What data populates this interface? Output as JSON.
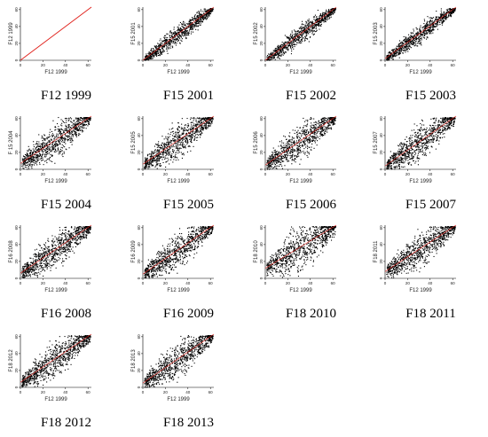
{
  "chart_data": [
    {
      "type": "scatter",
      "title": "F12 1999",
      "xlabel": "F12 1999",
      "ylabel": "F12 1999",
      "xticks": [
        "0",
        "20",
        "40",
        "60"
      ],
      "yticks": [
        "0",
        "20",
        "40",
        "60"
      ],
      "xlim": [
        0,
        63
      ],
      "ylim": [
        0,
        63
      ],
      "fit_line": {
        "x": [
          0,
          63
        ],
        "y": [
          0,
          63
        ]
      },
      "identity": true
    },
    {
      "type": "scatter",
      "title": "F15 2001",
      "xlabel": "F12 1999",
      "ylabel": "F15 2001",
      "xticks": [
        "0",
        "20",
        "40",
        "60"
      ],
      "yticks": [
        "0",
        "20",
        "40",
        "60"
      ],
      "xlim": [
        0,
        63
      ],
      "ylim": [
        0,
        63
      ],
      "fit_line": {
        "x": [
          0,
          63
        ],
        "y": [
          0,
          63
        ]
      }
    },
    {
      "type": "scatter",
      "title": "F15 2002",
      "xlabel": "F12 1999",
      "ylabel": "F15 2002",
      "xticks": [
        "0",
        "20",
        "40",
        "60"
      ],
      "yticks": [
        "0",
        "20",
        "40",
        "60"
      ],
      "xlim": [
        0,
        63
      ],
      "ylim": [
        0,
        63
      ],
      "fit_line": {
        "x": [
          0,
          63
        ],
        "y": [
          0,
          63
        ]
      }
    },
    {
      "type": "scatter",
      "title": "F15 2003",
      "xlabel": "F12 1999",
      "ylabel": "F15 2003",
      "xticks": [
        "0",
        "20",
        "40",
        "60"
      ],
      "yticks": [
        "0",
        "20",
        "40",
        "60"
      ],
      "xlim": [
        0,
        63
      ],
      "ylim": [
        0,
        63
      ],
      "fit_line": {
        "x": [
          0,
          63
        ],
        "y": [
          2,
          63
        ]
      }
    },
    {
      "type": "scatter",
      "title": "F15 2004",
      "xlabel": "F12 1999",
      "ylabel": "F 15 2004",
      "xticks": [
        "0",
        "20",
        "40",
        "60"
      ],
      "yticks": [
        "0",
        "20",
        "40",
        "60"
      ],
      "xlim": [
        0,
        63
      ],
      "ylim": [
        0,
        63
      ],
      "fit_line": {
        "x": [
          0,
          63
        ],
        "y": [
          7,
          63
        ]
      }
    },
    {
      "type": "scatter",
      "title": "F15 2005",
      "xlabel": "F12 1999",
      "ylabel": "F15 2005",
      "xticks": [
        "0",
        "20",
        "40",
        "60"
      ],
      "yticks": [
        "0",
        "20",
        "40",
        "60"
      ],
      "xlim": [
        0,
        63
      ],
      "ylim": [
        0,
        63
      ],
      "fit_line": {
        "x": [
          0,
          63
        ],
        "y": [
          6,
          63
        ]
      }
    },
    {
      "type": "scatter",
      "title": "F15 2006",
      "xlabel": "F12 1999",
      "ylabel": "F15 2006",
      "xticks": [
        "0",
        "20",
        "40",
        "60"
      ],
      "yticks": [
        "0",
        "20",
        "40",
        "60"
      ],
      "xlim": [
        0,
        63
      ],
      "ylim": [
        0,
        63
      ],
      "fit_line": {
        "x": [
          0,
          63
        ],
        "y": [
          5,
          63
        ]
      }
    },
    {
      "type": "scatter",
      "title": "F15 2007",
      "xlabel": "F12 1999",
      "ylabel": "F15 2007",
      "xticks": [
        "0",
        "20",
        "40",
        "60"
      ],
      "yticks": [
        "0",
        "20",
        "40",
        "60"
      ],
      "xlim": [
        0,
        63
      ],
      "ylim": [
        0,
        63
      ],
      "fit_line": {
        "x": [
          0,
          63
        ],
        "y": [
          4,
          63
        ]
      }
    },
    {
      "type": "scatter",
      "title": "F16 2008",
      "xlabel": "F12 1999",
      "ylabel": "F16 2008",
      "xticks": [
        "0",
        "20",
        "40",
        "60"
      ],
      "yticks": [
        "0",
        "20",
        "40",
        "60"
      ],
      "xlim": [
        0,
        63
      ],
      "ylim": [
        0,
        63
      ],
      "fit_line": {
        "x": [
          0,
          63
        ],
        "y": [
          6,
          63
        ]
      }
    },
    {
      "type": "scatter",
      "title": "F16 2009",
      "xlabel": "F12 1999",
      "ylabel": "F16 2009",
      "xticks": [
        "0",
        "20",
        "40",
        "60"
      ],
      "yticks": [
        "0",
        "20",
        "40",
        "60"
      ],
      "xlim": [
        0,
        63
      ],
      "ylim": [
        0,
        63
      ],
      "fit_line": {
        "x": [
          0,
          63
        ],
        "y": [
          5,
          63
        ]
      }
    },
    {
      "type": "scatter",
      "title": "F18 2010",
      "xlabel": "F12 1999",
      "ylabel": "F18 2010",
      "xticks": [
        "0",
        "20",
        "40",
        "60"
      ],
      "yticks": [
        "0",
        "20",
        "40",
        "60"
      ],
      "xlim": [
        0,
        63
      ],
      "ylim": [
        0,
        63
      ],
      "fit_line": {
        "x": [
          0,
          63
        ],
        "y": [
          12,
          63
        ]
      }
    },
    {
      "type": "scatter",
      "title": "F18 2011",
      "xlabel": "F12 1999",
      "ylabel": "F18 2011",
      "xticks": [
        "0",
        "20",
        "40",
        "60"
      ],
      "yticks": [
        "0",
        "20",
        "40",
        "60"
      ],
      "xlim": [
        0,
        63
      ],
      "ylim": [
        0,
        63
      ],
      "fit_line": {
        "x": [
          0,
          63
        ],
        "y": [
          8,
          63
        ]
      }
    },
    {
      "type": "scatter",
      "title": "F18 2012",
      "xlabel": "F12 1999",
      "ylabel": "F18 2012",
      "xticks": [
        "0",
        "20",
        "40",
        "60"
      ],
      "yticks": [
        "0",
        "20",
        "40",
        "60"
      ],
      "xlim": [
        0,
        63
      ],
      "ylim": [
        0,
        63
      ],
      "fit_line": {
        "x": [
          0,
          63
        ],
        "y": [
          6,
          63
        ]
      }
    },
    {
      "type": "scatter",
      "title": "F18 2013",
      "xlabel": "F12 1999",
      "ylabel": "F18 2013",
      "xticks": [
        "0",
        "20",
        "40",
        "60"
      ],
      "yticks": [
        "0",
        "20",
        "40",
        "60"
      ],
      "xlim": [
        0,
        63
      ],
      "ylim": [
        0,
        63
      ],
      "fit_line": {
        "x": [
          0,
          63
        ],
        "y": [
          5,
          63
        ]
      }
    }
  ],
  "colors": {
    "points": "#000000",
    "fit_line": "#e0201a",
    "axis": "#000000"
  }
}
